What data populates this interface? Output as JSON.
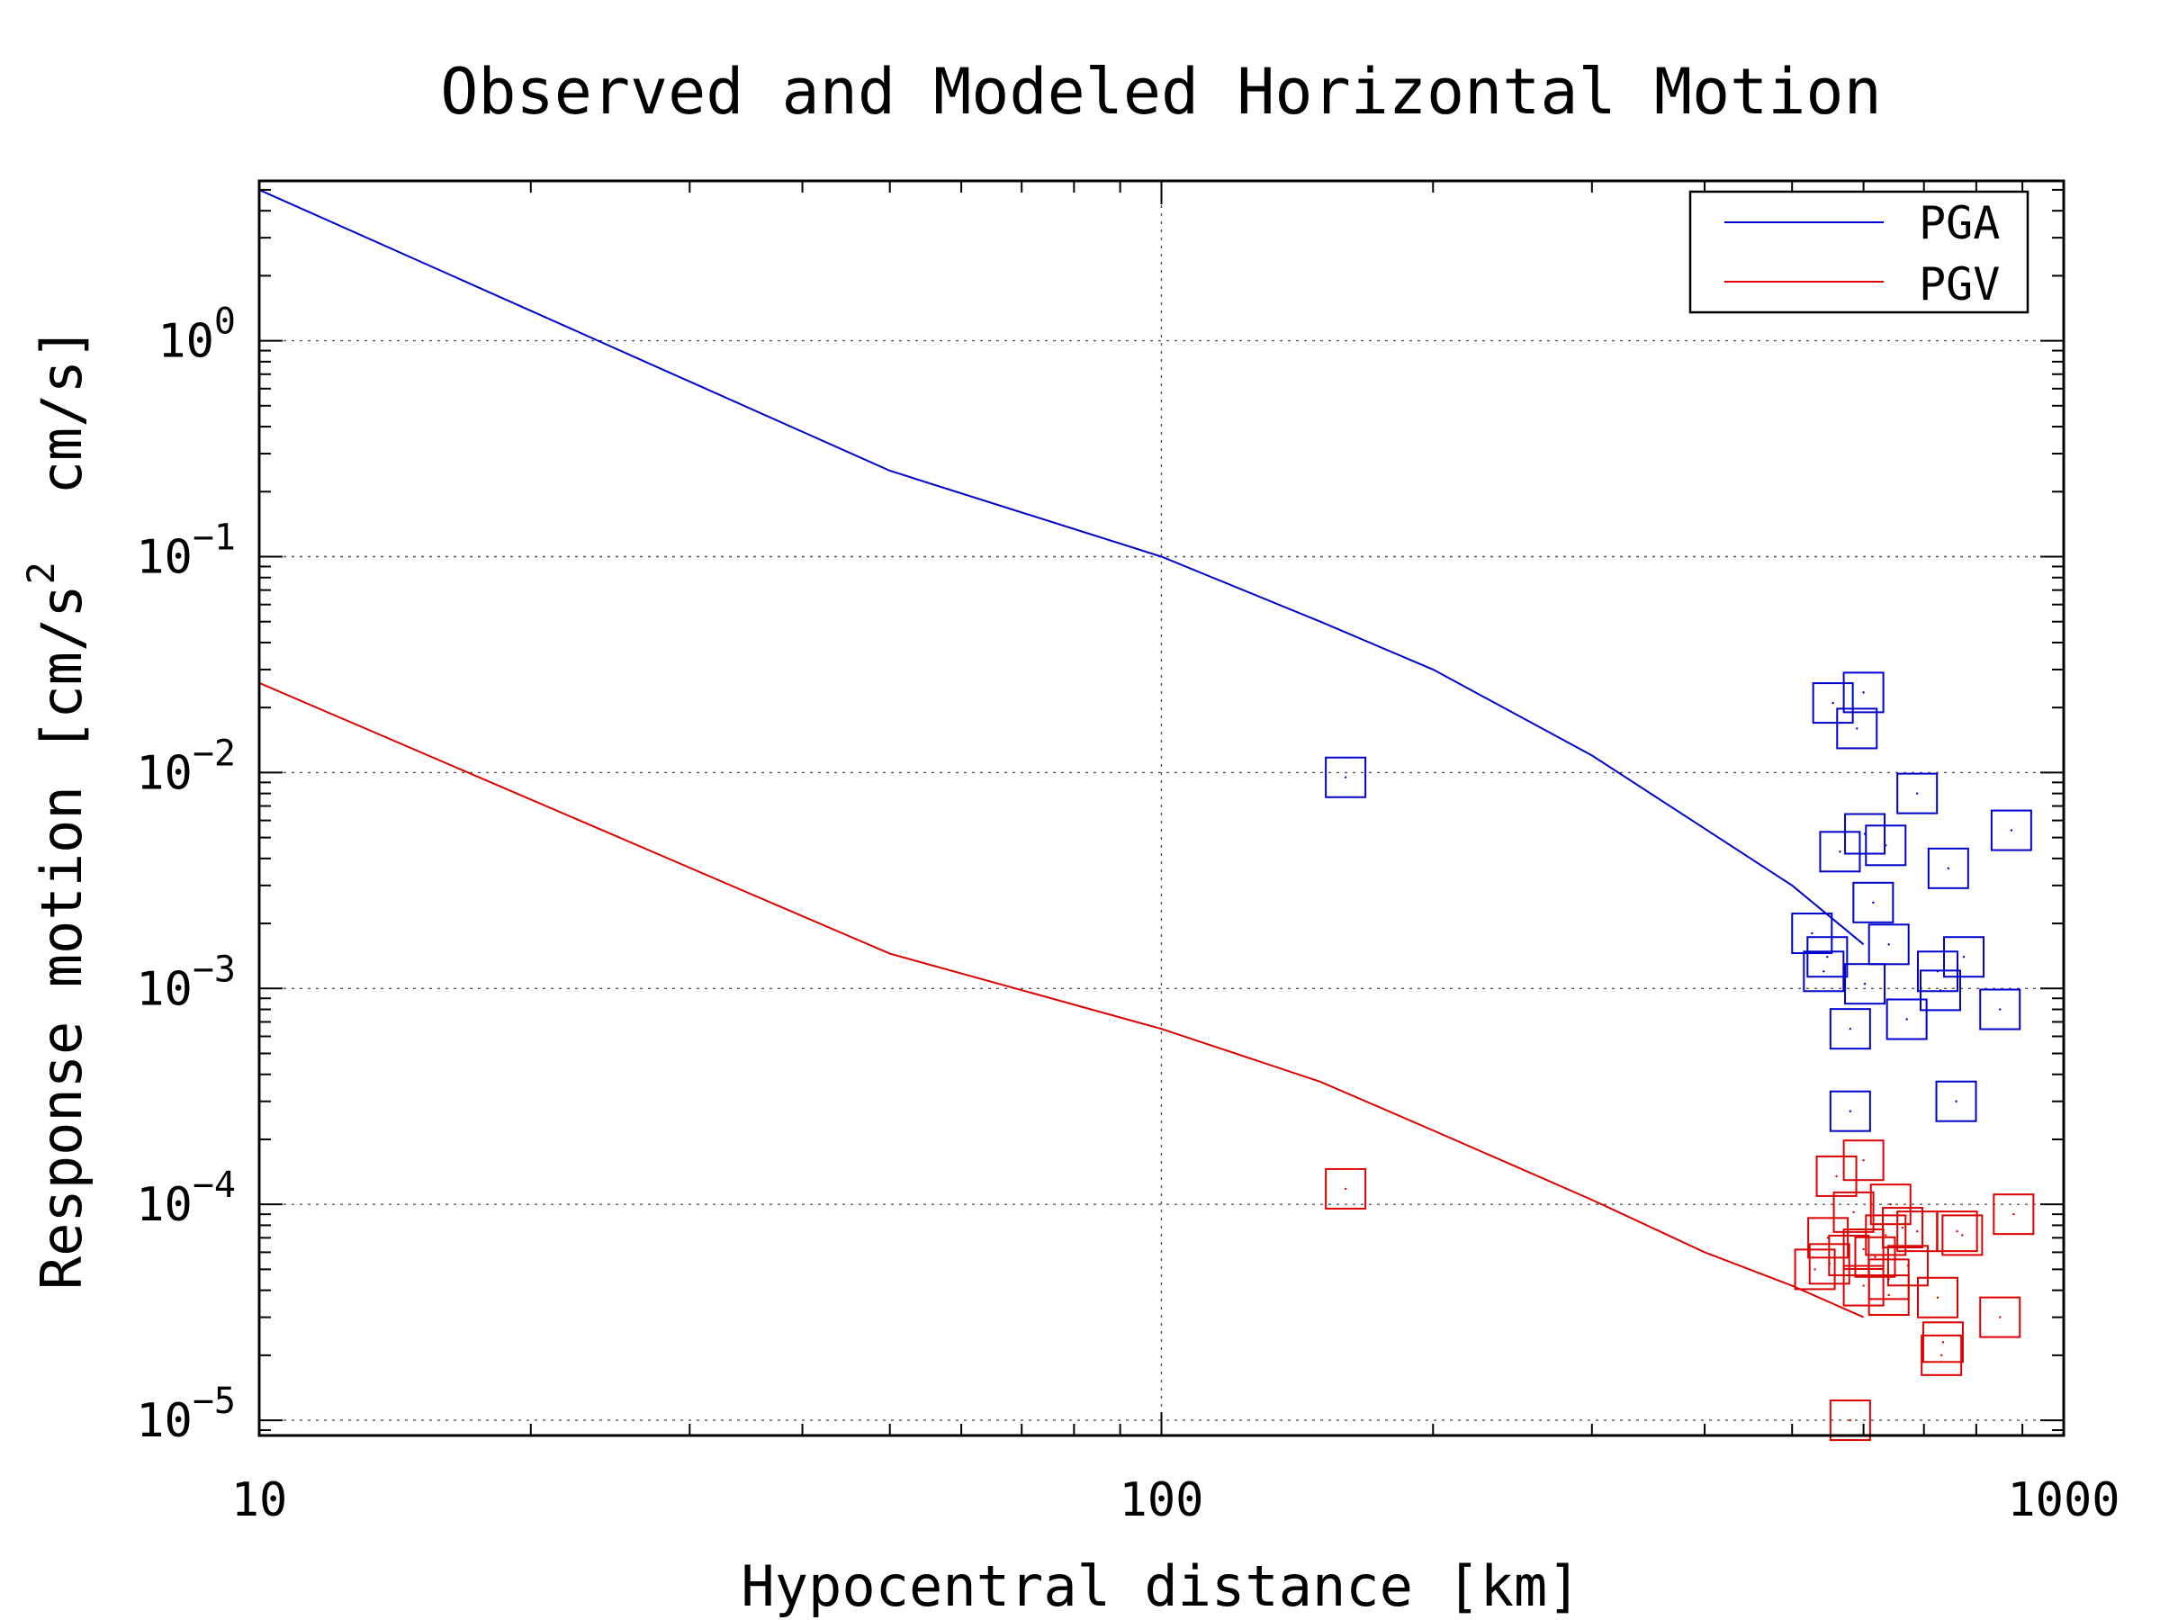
{
  "chart_data": {
    "type": "scatter",
    "title": "Observed and Modeled Horizontal Motion",
    "xlabel": "Hypocentral distance [km]",
    "ylabel": {
      "prefix": "Response motion [cm/s",
      "exponent": "2",
      "suffix": "  cm/s]"
    },
    "x_scale": "log",
    "y_scale": "log",
    "xlim": [
      10,
      1000
    ],
    "ylim": [
      8.5e-06,
      5.5
    ],
    "x_ticks": [
      {
        "value": 10,
        "label": "10"
      },
      {
        "value": 100,
        "label": "100"
      },
      {
        "value": 1000,
        "label": "1000"
      }
    ],
    "y_ticks": [
      {
        "value": 1,
        "base": "10",
        "exp": "0"
      },
      {
        "value": 0.1,
        "base": "10",
        "exp": "−1"
      },
      {
        "value": 0.01,
        "base": "10",
        "exp": "−2"
      },
      {
        "value": 0.001,
        "base": "10",
        "exp": "−3"
      },
      {
        "value": 0.0001,
        "base": "10",
        "exp": "−4"
      },
      {
        "value": 1e-05,
        "base": "10",
        "exp": "−5"
      }
    ],
    "grid": true,
    "legend": {
      "position": "top-right",
      "entries": [
        {
          "label": "PGA",
          "color": "#0000cc"
        },
        {
          "label": "PGV",
          "color": "#dd0000"
        }
      ]
    },
    "model_curves": [
      {
        "name": "PGA",
        "color": "#0000cc",
        "points": [
          [
            10,
            5.0
          ],
          [
            50,
            0.25
          ],
          [
            100,
            0.1
          ],
          [
            150,
            0.05
          ],
          [
            200,
            0.03
          ],
          [
            300,
            0.012
          ],
          [
            400,
            0.0055
          ],
          [
            500,
            0.003
          ],
          [
            600,
            0.0016
          ]
        ]
      },
      {
        "name": "PGV",
        "color": "#dd0000",
        "points": [
          [
            10,
            0.026
          ],
          [
            50,
            0.00145
          ],
          [
            100,
            0.00065
          ],
          [
            150,
            0.00037
          ],
          [
            200,
            0.00022
          ],
          [
            300,
            0.000105
          ],
          [
            400,
            6e-05
          ],
          [
            500,
            4.2e-05
          ],
          [
            600,
            3e-05
          ]
        ]
      }
    ],
    "observations": [
      {
        "series": "PGA",
        "color": "#0000cc",
        "points": [
          [
            160,
            0.0095
          ],
          [
            555,
            0.021
          ],
          [
            600,
            0.0235
          ],
          [
            590,
            0.016
          ],
          [
            565,
            0.0043
          ],
          [
            602,
            0.0052
          ],
          [
            635,
            0.0046
          ],
          [
            688,
            0.008
          ],
          [
            745,
            0.0036
          ],
          [
            615,
            0.0025
          ],
          [
            640,
            0.0016
          ],
          [
            526,
            0.0018
          ],
          [
            547,
            0.0014
          ],
          [
            542,
            0.0012
          ],
          [
            602,
            0.00105
          ],
          [
            580,
            0.00065
          ],
          [
            670,
            0.00072
          ],
          [
            725,
            0.0012
          ],
          [
            730,
            0.00098
          ],
          [
            775,
            0.0014
          ],
          [
            850,
            0.0008
          ],
          [
            875,
            0.0054
          ],
          [
            760,
            0.0003
          ],
          [
            580,
            0.00027
          ]
        ]
      },
      {
        "series": "PGV",
        "color": "#dd0000",
        "points": [
          [
            160,
            0.000118
          ],
          [
            560,
            0.000135
          ],
          [
            600,
            0.00016
          ],
          [
            585,
            9.2e-05
          ],
          [
            643,
            0.0001
          ],
          [
            548,
            7e-05
          ],
          [
            530,
            5e-05
          ],
          [
            550,
            5.3e-05
          ],
          [
            578,
            5.8e-05
          ],
          [
            600,
            6.2e-05
          ],
          [
            618,
            5.7e-05
          ],
          [
            640,
            4.5e-05
          ],
          [
            663,
            7.8e-05
          ],
          [
            672,
            5.2e-05
          ],
          [
            635,
            7.2e-05
          ],
          [
            688,
            7.5e-05
          ],
          [
            600,
            4.2e-05
          ],
          [
            640,
            3.8e-05
          ],
          [
            725,
            3.7e-05
          ],
          [
            735,
            2.3e-05
          ],
          [
            732,
            2e-05
          ],
          [
            762,
            7.5e-05
          ],
          [
            772,
            7.2e-05
          ],
          [
            850,
            3e-05
          ],
          [
            880,
            9e-05
          ],
          [
            580,
            1e-05
          ]
        ]
      }
    ]
  }
}
